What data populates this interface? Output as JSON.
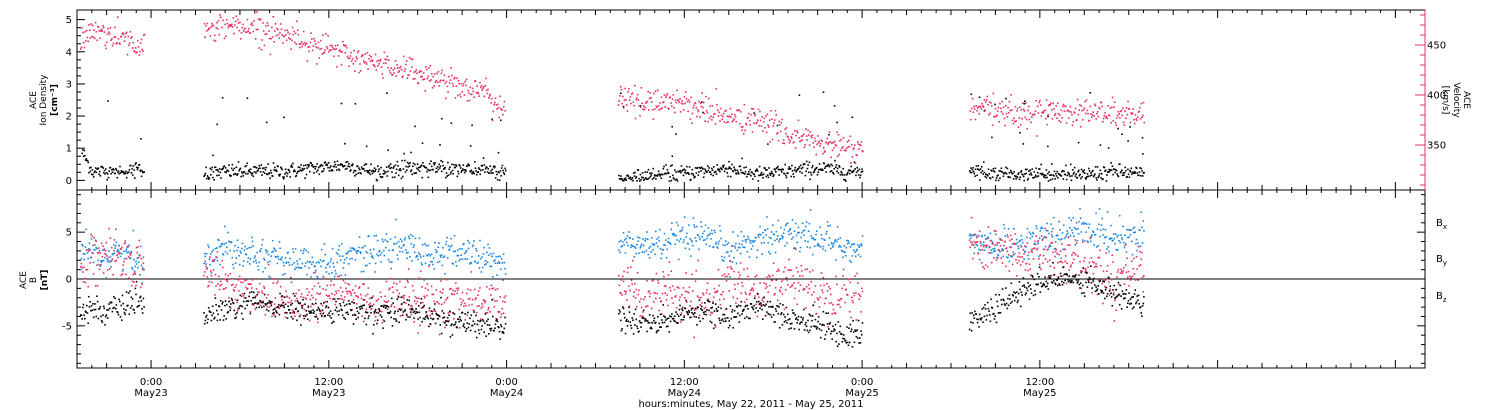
{
  "figure": {
    "xlabel": "hours:minutes, May 22, 2011 - May 25, 2011"
  },
  "colors": {
    "density": "#000000",
    "velocity": "#e8305f",
    "bx": "#000000",
    "by": "#1a86e0",
    "bz": "#e8305f",
    "axes": "#000000"
  },
  "chart_data": [
    {
      "type": "scatter",
      "panel": "plasma",
      "xlim": [
        -5,
        86
      ],
      "x_ticks": [
        {
          "x": 0,
          "label": "0:00",
          "sub": "May23"
        },
        {
          "x": 12,
          "label": "12:00",
          "sub": "May23"
        },
        {
          "x": 24,
          "label": "0:00",
          "sub": "May24"
        },
        {
          "x": 36,
          "label": "12:00",
          "sub": "May24"
        },
        {
          "x": 48,
          "label": "0:00",
          "sub": "May25"
        },
        {
          "x": 60,
          "label": "12:00",
          "sub": "May25"
        }
      ],
      "left_axis": {
        "label_lines": [
          "ACE",
          "Ion Density"
        ],
        "units": "[cm⁻³]",
        "ylim": [
          -0.3,
          5.3
        ],
        "ticks": [
          "0",
          "1",
          "2",
          "3",
          "4",
          "5"
        ]
      },
      "right_axis": {
        "label_lines": [
          "ACE",
          "Velocity"
        ],
        "units": "[km/s]",
        "ylim": [
          305,
          485
        ],
        "ticks": [
          "350",
          "400",
          "450"
        ]
      },
      "gaps_hours": [
        [
          -0.5,
          3.5
        ],
        [
          23.9,
          31.5
        ],
        [
          48.0,
          55.2
        ],
        [
          67.0,
          86
        ]
      ],
      "series": [
        {
          "key": "density",
          "axis": "left",
          "x": [
            -4.7,
            -4.0,
            -3.0,
            -2.0,
            -1.0,
            -0.6,
            3.5,
            5,
            7,
            9,
            11,
            13,
            15,
            17,
            19,
            21,
            23,
            23.9,
            31.5,
            33,
            35,
            37,
            39,
            41,
            43,
            45,
            47,
            48,
            55.2,
            57,
            59,
            61,
            63,
            65,
            67
          ],
          "y": [
            0.9,
            0.3,
            0.3,
            0.3,
            0.4,
            0.3,
            0.2,
            0.3,
            0.3,
            0.3,
            0.4,
            0.5,
            0.3,
            0.4,
            0.4,
            0.4,
            0.3,
            0.3,
            0.1,
            0.1,
            0.2,
            0.3,
            0.4,
            0.2,
            0.3,
            0.4,
            0.3,
            0.3,
            0.4,
            0.2,
            0.2,
            0.2,
            0.2,
            0.3,
            0.2
          ]
        },
        {
          "key": "velocity",
          "axis": "right",
          "x": [
            -4.8,
            -4.0,
            -3.0,
            -2.0,
            -1.0,
            -0.6,
            3.5,
            5,
            7,
            9,
            11,
            13,
            15,
            17,
            19,
            21,
            23,
            23.9,
            31.5,
            33,
            35,
            37,
            39,
            41,
            43,
            45,
            47,
            48,
            55.2,
            57,
            59,
            61,
            63,
            65,
            67
          ],
          "y": [
            455,
            465,
            462,
            458,
            452,
            448,
            462,
            472,
            468,
            462,
            452,
            440,
            432,
            428,
            418,
            410,
            398,
            380,
            400,
            392,
            396,
            388,
            378,
            375,
            362,
            352,
            348,
            345,
            386,
            385,
            382,
            385,
            384,
            382,
            380
          ]
        }
      ]
    },
    {
      "type": "scatter",
      "panel": "magnetic",
      "xlim": [
        -5,
        86
      ],
      "axis": {
        "label_lines": [
          "ACE",
          "B"
        ],
        "units": "[nT]",
        "ylim": [
          -9.5,
          9.5
        ],
        "ticks": [
          "-5",
          "0",
          "5"
        ]
      },
      "zero_line": 0,
      "legend": {
        "placement": "right",
        "entries": [
          "Bx",
          "By",
          "Bz"
        ]
      },
      "gaps_hours": [
        [
          -0.5,
          3.5
        ],
        [
          23.9,
          31.5
        ],
        [
          48.0,
          55.2
        ],
        [
          67.0,
          86
        ]
      ],
      "series": [
        {
          "key": "bx",
          "name": "Bx",
          "x": [
            -4.8,
            -4.0,
            -3.0,
            -2.0,
            -1.0,
            -0.6,
            3.5,
            5,
            7,
            9,
            11,
            13,
            15,
            17,
            19,
            21,
            23,
            23.9,
            31.5,
            33,
            35,
            37,
            39,
            41,
            43,
            45,
            47,
            48,
            55.2,
            57,
            59,
            61,
            63,
            65,
            67
          ],
          "y": [
            -3.5,
            -3.0,
            -3.5,
            -3.0,
            -2.5,
            -2.5,
            -4.0,
            -3.2,
            -2.5,
            -3.0,
            -3.5,
            -3.2,
            -3.6,
            -3.0,
            -4.0,
            -4.5,
            -4.8,
            -5.0,
            -4.0,
            -4.5,
            -4.3,
            -3.0,
            -4.2,
            -2.5,
            -4.0,
            -4.8,
            -6.0,
            -5.5,
            -4.5,
            -3.0,
            -1.0,
            0.0,
            0.2,
            -1.5,
            -2.5
          ]
        },
        {
          "key": "by",
          "name": "By",
          "x": [
            -4.8,
            -4.0,
            -3.0,
            -2.0,
            -1.0,
            -0.6,
            3.5,
            5,
            7,
            9,
            11,
            13,
            15,
            17,
            19,
            21,
            23,
            23.9,
            31.5,
            33,
            35,
            37,
            39,
            41,
            43,
            45,
            47,
            48,
            55.2,
            57,
            59,
            61,
            63,
            65,
            67
          ],
          "y": [
            2.0,
            3.0,
            2.5,
            3.0,
            2.0,
            1.5,
            2.5,
            3.5,
            3.0,
            2.0,
            1.5,
            2.5,
            3.0,
            3.5,
            2.5,
            3.0,
            2.0,
            1.5,
            4.0,
            3.5,
            4.0,
            4.5,
            3.0,
            4.5,
            5.0,
            4.5,
            3.5,
            3.0,
            4.0,
            3.5,
            4.0,
            4.5,
            5.5,
            4.5,
            5.0
          ]
        },
        {
          "key": "bz",
          "name": "Bz",
          "x": [
            -4.8,
            -4.0,
            -3.0,
            -2.0,
            -1.0,
            -0.6,
            3.5,
            5,
            7,
            9,
            11,
            13,
            15,
            17,
            19,
            21,
            23,
            23.9,
            31.5,
            33,
            35,
            37,
            39,
            41,
            43,
            45,
            47,
            48,
            55.2,
            57,
            59,
            61,
            63,
            65,
            67
          ],
          "y": [
            1.0,
            3.0,
            2.0,
            2.5,
            1.5,
            0.5,
            1.5,
            -0.5,
            -1.5,
            -2.0,
            -2.5,
            -1.0,
            -2.5,
            -2.0,
            -2.5,
            -2.0,
            -2.5,
            -2.0,
            0.5,
            -2.0,
            -1.5,
            -3.0,
            0.0,
            -2.0,
            0.5,
            -1.5,
            -1.0,
            -2.0,
            4.0,
            3.5,
            2.5,
            3.0,
            1.5,
            0.0,
            2.0
          ]
        }
      ]
    }
  ]
}
